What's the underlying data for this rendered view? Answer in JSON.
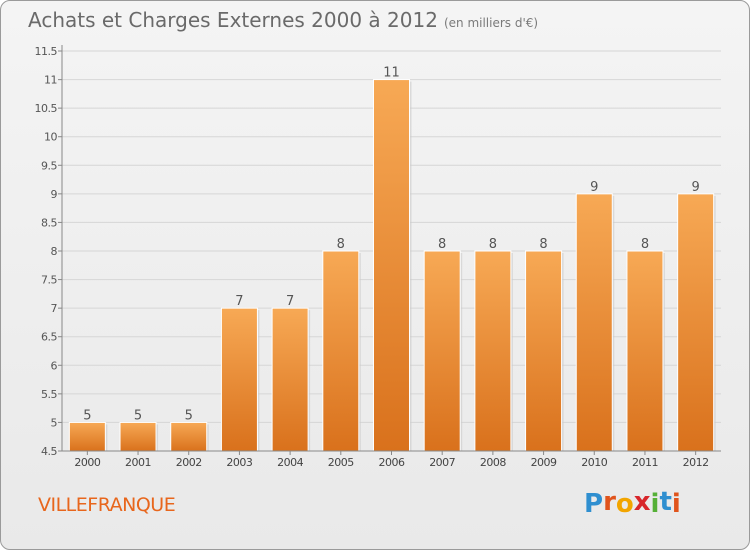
{
  "header": {
    "title": "Achats et Charges Externes 2000 à 2012",
    "subtitle": "(en milliers d'€)"
  },
  "footer": {
    "commune": "VILLEFRANQUE",
    "logo": "Proxiti"
  },
  "colors": {
    "bar_top": "#f7a955",
    "bar_bottom": "#d9711c",
    "commune_text": "#e8661c",
    "logo_letters": [
      "#2f8fd0",
      "#e0541c",
      "#f2a500",
      "#d8262b",
      "#55b037",
      "#2f8fd0",
      "#e0541c"
    ]
  },
  "chart_data": {
    "type": "bar",
    "title": "Achats et Charges Externes 2000 à 2012",
    "subtitle": "(en milliers d'€)",
    "categories": [
      "2000",
      "2001",
      "2002",
      "2003",
      "2004",
      "2005",
      "2006",
      "2007",
      "2008",
      "2009",
      "2010",
      "2011",
      "2012"
    ],
    "values": [
      5,
      5,
      5,
      7,
      7,
      8,
      11,
      8,
      8,
      8,
      9,
      8,
      9
    ],
    "ylim": [
      4.5,
      11.5
    ],
    "yticks": [
      "4.5",
      "5",
      "5.5",
      "6",
      "6.5",
      "7",
      "7.5",
      "8",
      "8.5",
      "9",
      "9.5",
      "10",
      "10.5",
      "11",
      "11.5"
    ],
    "xlabel": "",
    "ylabel": "",
    "grid": true
  }
}
